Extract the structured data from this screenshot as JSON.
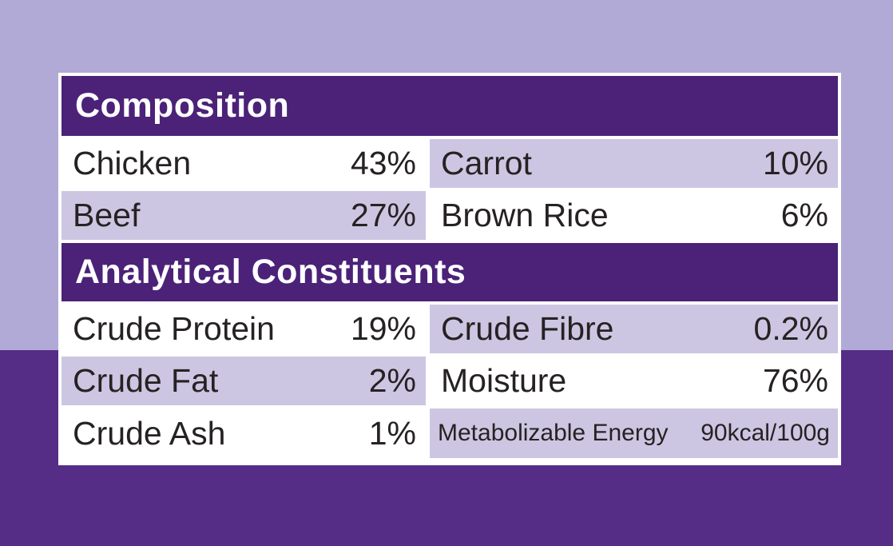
{
  "theme": {
    "bg_top": "#b1aad6",
    "bg_bottom": "#552d87",
    "header_bg": "#4b2278",
    "alt_row_bg": "#cdc6e2",
    "text_color": "#262223"
  },
  "label": {
    "sections": [
      {
        "title": "Composition",
        "rows": [
          {
            "name": "Chicken",
            "value": "43%"
          },
          {
            "name": "Carrot",
            "value": "10%"
          },
          {
            "name": "Beef",
            "value": "27%"
          },
          {
            "name": "Brown Rice",
            "value": "6%"
          }
        ]
      },
      {
        "title": "Analytical Constituents",
        "rows": [
          {
            "name": "Crude Protein",
            "value": "19%"
          },
          {
            "name": "Crude Fibre",
            "value": "0.2%"
          },
          {
            "name": "Crude Fat",
            "value": "2%"
          },
          {
            "name": "Moisture",
            "value": "76%"
          },
          {
            "name": "Crude Ash",
            "value": "1%"
          },
          {
            "name": "Metabolizable Energy",
            "value": "90kcal/100g"
          }
        ]
      }
    ]
  }
}
